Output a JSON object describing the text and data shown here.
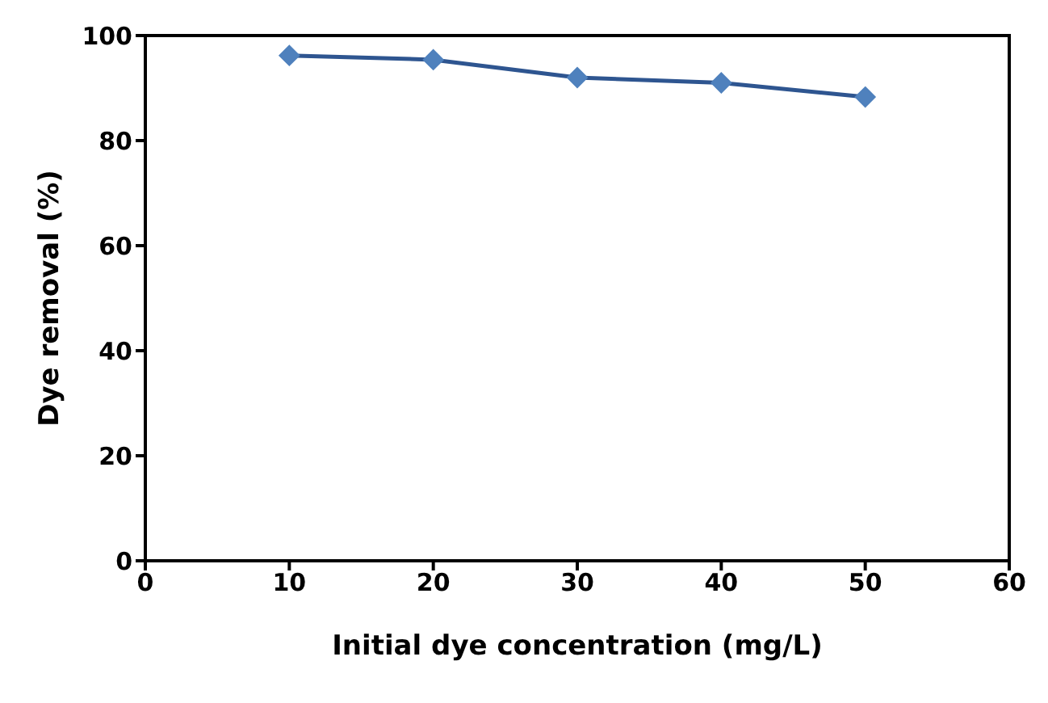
{
  "chart_data": {
    "type": "line",
    "xlabel": "Initial dye concentration (mg/L)",
    "ylabel": "Dye removal (%)",
    "x": [
      10,
      20,
      30,
      40,
      50
    ],
    "series": [
      {
        "color": "#2e5590",
        "values": [
          96.2,
          95.4,
          92.0,
          91.0,
          88.3
        ]
      }
    ],
    "xlim": [
      0,
      60
    ],
    "xticks": [
      0,
      10,
      20,
      30,
      40,
      50,
      60
    ],
    "ylim": [
      0,
      100
    ],
    "yticks": [
      0,
      20,
      40,
      60,
      80,
      100
    ],
    "marker": "diamond",
    "grid": false,
    "legend": false
  }
}
